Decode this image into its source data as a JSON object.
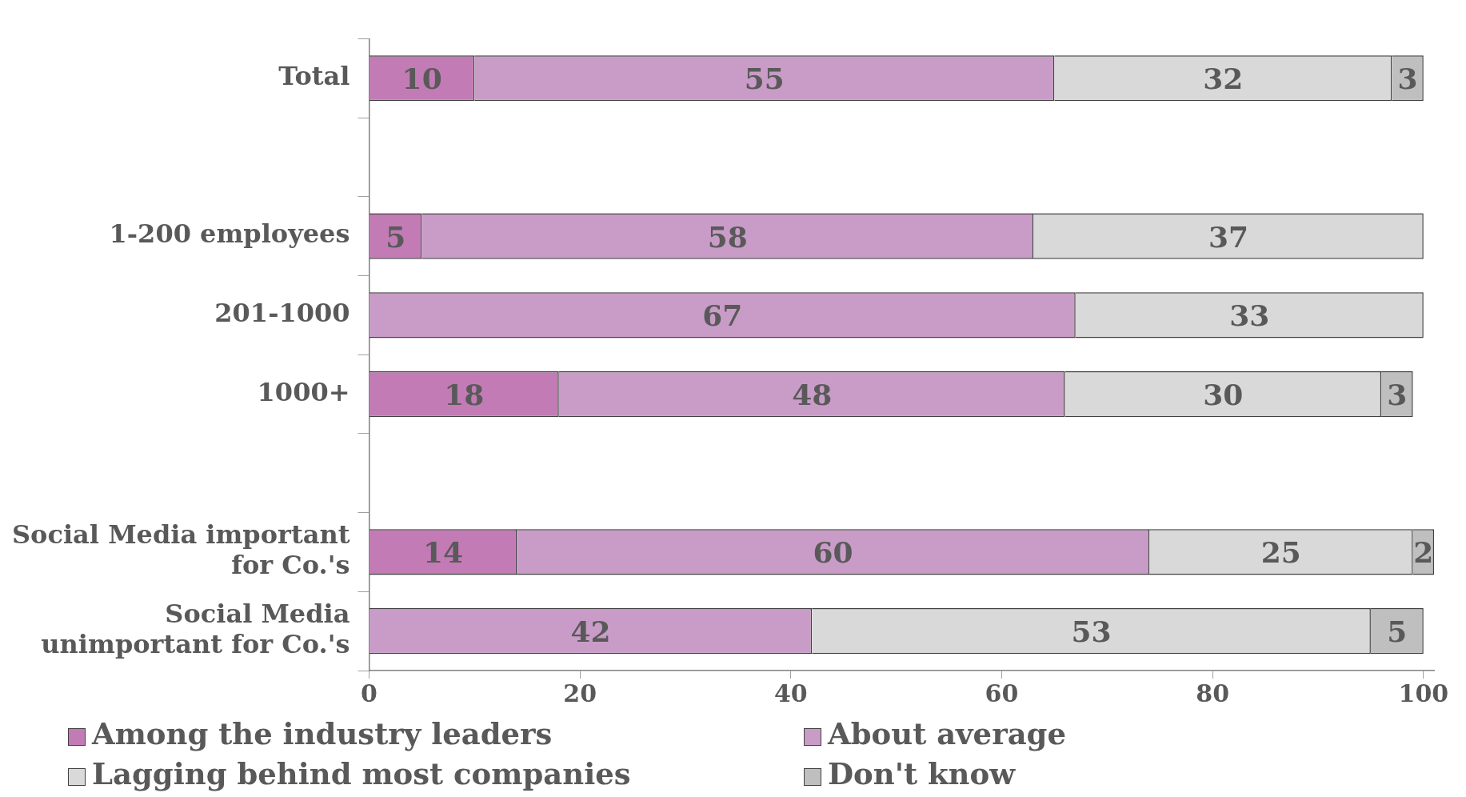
{
  "chart_data": {
    "type": "bar",
    "orientation": "horizontal",
    "stacked": true,
    "categories": [
      "Total",
      null,
      "1-200 employees",
      "201-1000",
      "1000+",
      null,
      "Social Media important for Co.'s",
      "Social Media unimportant for Co.'s"
    ],
    "series": [
      {
        "name": "Among the industry leaders",
        "color": "#c27bb5",
        "values": [
          10,
          null,
          5,
          null,
          18,
          null,
          14,
          null
        ]
      },
      {
        "name": "About average",
        "color": "#c99cc8",
        "values": [
          55,
          null,
          58,
          67,
          48,
          null,
          60,
          42
        ]
      },
      {
        "name": "Lagging behind most companies",
        "color": "#d9d9d9",
        "values": [
          32,
          null,
          37,
          33,
          30,
          null,
          25,
          53
        ]
      },
      {
        "name": "Don't know",
        "color": "#bfbfbf",
        "values": [
          3,
          null,
          null,
          null,
          3,
          null,
          2,
          5
        ]
      }
    ],
    "xlim": [
      0,
      101
    ],
    "xticks": [
      0,
      20,
      40,
      60,
      80,
      100
    ],
    "grid": false,
    "legend": "bottom",
    "data_labels": true
  }
}
